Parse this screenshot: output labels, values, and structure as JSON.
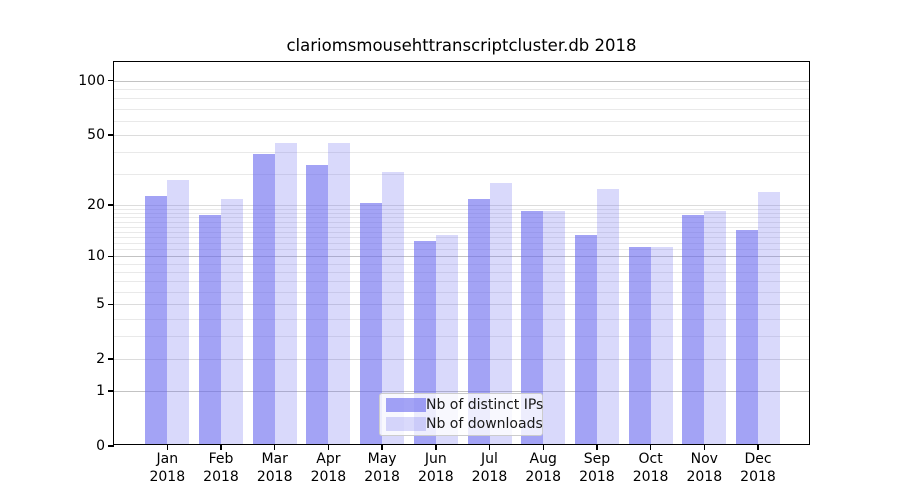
{
  "title": "clariomsmousehttranscriptcluster.db 2018",
  "chart_data": {
    "type": "bar",
    "title": "clariomsmousehttranscriptcluster.db 2018",
    "categories": [
      "Jan 2018",
      "Feb 2018",
      "Mar 2018",
      "Apr 2018",
      "May 2018",
      "Jun 2018",
      "Jul 2018",
      "Aug 2018",
      "Sep 2018",
      "Oct 2018",
      "Nov 2018",
      "Dec 2018"
    ],
    "series": [
      {
        "name": "Nb of distinct IPs",
        "color": "rgba(102,102,238,0.6)",
        "values": [
          22,
          17,
          38,
          33,
          20,
          12,
          21,
          18,
          13,
          11,
          17,
          14
        ]
      },
      {
        "name": "Nb of downloads",
        "color": "rgba(102,102,238,0.25)",
        "values": [
          27,
          21,
          44,
          44,
          30,
          13,
          26,
          18,
          24,
          11,
          18,
          23
        ]
      }
    ],
    "xlabel": "",
    "ylabel": "",
    "yscale": "log1p",
    "ylim": [
      0,
      127
    ],
    "y_tick_values": [
      0,
      1,
      2,
      5,
      10,
      20,
      50,
      100
    ],
    "y_decade_gridlines": [
      1,
      10,
      100
    ],
    "y_mid_gridlines": [
      2,
      5,
      20,
      50
    ],
    "y_minor_gridlines": [
      3,
      4,
      6,
      7,
      8,
      9,
      11,
      12,
      13,
      14,
      15,
      16,
      17,
      18,
      19,
      30,
      40,
      60,
      70,
      80,
      90
    ],
    "grid": true,
    "legend_position": "lower center",
    "colors": {
      "bar_dark": "rgba(102,102,238,0.6)",
      "bar_light": "rgba(102,102,238,0.25)",
      "grid_major": "#c3c3c3",
      "grid_minor": "#e9e9e9",
      "spine": "#000000"
    }
  },
  "legend": {
    "entries": [
      "Nb of distinct IPs",
      "Nb of downloads"
    ]
  }
}
